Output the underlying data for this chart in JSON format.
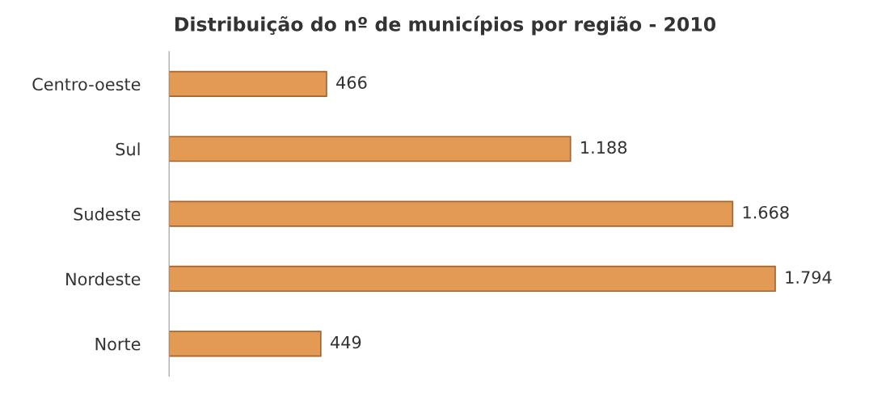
{
  "chart_data": {
    "type": "bar",
    "orientation": "horizontal",
    "title": "Distribuição do nº de municípios por região - 2010",
    "categories": [
      "Centro-oeste",
      "Sul",
      "Sudeste",
      "Nordeste",
      "Norte"
    ],
    "values": [
      466,
      1188,
      1668,
      1794,
      449
    ],
    "value_labels": [
      "466",
      "1.188",
      "1.668",
      "1.794",
      "449"
    ],
    "color": "#e39a55",
    "grid": false,
    "legend": false
  }
}
